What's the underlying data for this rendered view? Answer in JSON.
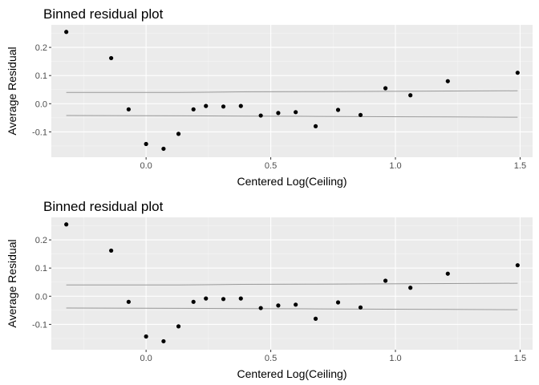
{
  "chart_data": [
    {
      "type": "scatter",
      "title": "Binned residual plot",
      "xlabel": "Centered Log(Ceiling)",
      "ylabel": "Average Residual",
      "xlim": [
        -0.38,
        1.55
      ],
      "ylim": [
        -0.19,
        0.28
      ],
      "xticks": [
        0.0,
        0.5,
        1.0,
        1.5
      ],
      "xtick_labels": [
        "0.0",
        "0.5",
        "1.0",
        "1.5"
      ],
      "yticks": [
        -0.1,
        0.0,
        0.1,
        0.2
      ],
      "ytick_labels": [
        "-0.1",
        "0.0",
        "0.1",
        "0.2"
      ],
      "grid": true,
      "points": {
        "x": [
          -0.32,
          -0.14,
          -0.07,
          0.0,
          0.07,
          0.13,
          0.19,
          0.24,
          0.31,
          0.38,
          0.46,
          0.53,
          0.6,
          0.68,
          0.77,
          0.86,
          0.96,
          1.06,
          1.21,
          1.49
        ],
        "y": [
          0.255,
          0.162,
          -0.02,
          -0.143,
          -0.16,
          -0.107,
          -0.02,
          -0.008,
          -0.01,
          -0.008,
          -0.042,
          -0.033,
          -0.03,
          -0.08,
          -0.022,
          -0.04,
          0.055,
          0.03,
          0.08,
          0.11
        ]
      },
      "bounds": {
        "x": [
          -0.32,
          0.13,
          0.38,
          0.68,
          0.96,
          1.21,
          1.49
        ],
        "upper": [
          0.04,
          0.04,
          0.042,
          0.043,
          0.044,
          0.045,
          0.046
        ],
        "lower": [
          -0.042,
          -0.043,
          -0.044,
          -0.045,
          -0.046,
          -0.047,
          -0.048
        ]
      },
      "colors": {
        "panel": "#ebebeb",
        "grid_major": "#ffffff",
        "grid_minor": "#f5f5f5",
        "points": "#000000",
        "bounds": "#999999"
      }
    },
    {
      "type": "scatter",
      "title": "Binned residual plot",
      "xlabel": "Centered Log(Ceiling)",
      "ylabel": "Average Residual",
      "xlim": [
        -0.38,
        1.55
      ],
      "ylim": [
        -0.19,
        0.28
      ],
      "xticks": [
        0.0,
        0.5,
        1.0,
        1.5
      ],
      "xtick_labels": [
        "0.0",
        "0.5",
        "1.0",
        "1.5"
      ],
      "yticks": [
        -0.1,
        0.0,
        0.1,
        0.2
      ],
      "ytick_labels": [
        "-0.1",
        "0.0",
        "0.1",
        "0.2"
      ],
      "grid": true,
      "points": {
        "x": [
          -0.32,
          -0.14,
          -0.07,
          0.0,
          0.07,
          0.13,
          0.19,
          0.24,
          0.31,
          0.38,
          0.46,
          0.53,
          0.6,
          0.68,
          0.77,
          0.86,
          0.96,
          1.06,
          1.21,
          1.49
        ],
        "y": [
          0.255,
          0.162,
          -0.02,
          -0.143,
          -0.16,
          -0.107,
          -0.02,
          -0.008,
          -0.01,
          -0.008,
          -0.042,
          -0.033,
          -0.03,
          -0.08,
          -0.022,
          -0.04,
          0.055,
          0.03,
          0.08,
          0.11
        ]
      },
      "bounds": {
        "x": [
          -0.32,
          0.13,
          0.38,
          0.68,
          0.96,
          1.21,
          1.49
        ],
        "upper": [
          0.04,
          0.04,
          0.042,
          0.043,
          0.044,
          0.045,
          0.046
        ],
        "lower": [
          -0.042,
          -0.043,
          -0.044,
          -0.045,
          -0.046,
          -0.047,
          -0.048
        ]
      },
      "colors": {
        "panel": "#ebebeb",
        "grid_major": "#ffffff",
        "grid_minor": "#f5f5f5",
        "points": "#000000",
        "bounds": "#999999"
      }
    }
  ]
}
